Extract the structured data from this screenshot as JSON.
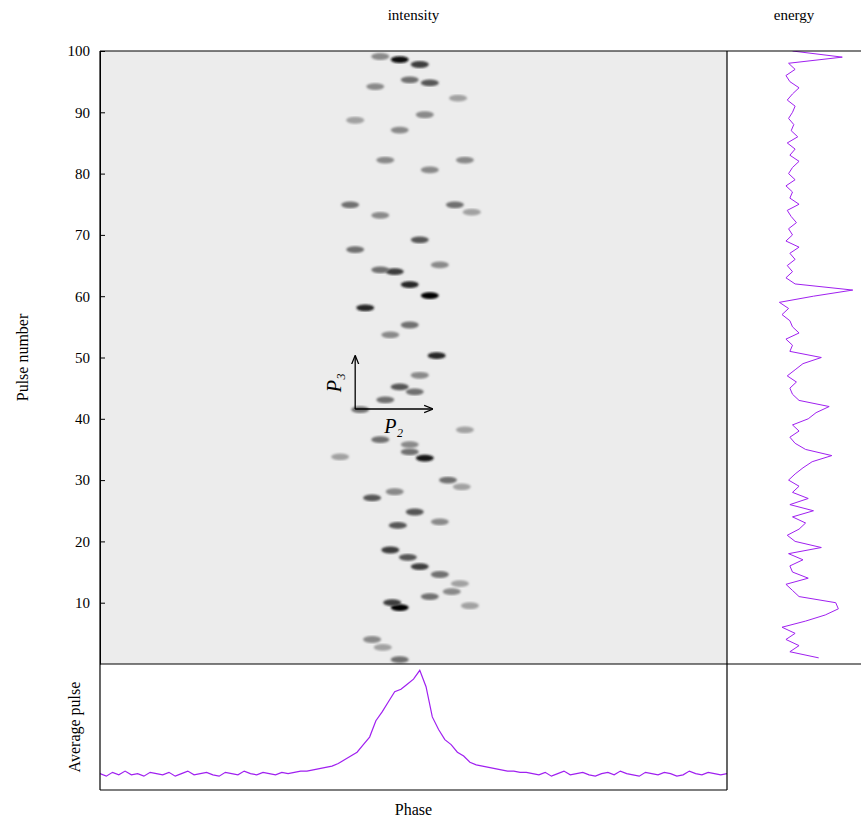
{
  "chart_data": [
    {
      "type": "scatter",
      "title": "intensity",
      "y_label": "Pulse number",
      "xlim": [
        0,
        1
      ],
      "ylim": [
        0,
        100
      ],
      "yticks": [
        10,
        20,
        30,
        40,
        50,
        60,
        70,
        80,
        90,
        100
      ],
      "tick_labels": "y",
      "marker": "ellipse",
      "color": "#000000",
      "x": [
        0.478,
        0.434,
        0.451,
        0.478,
        0.466,
        0.526,
        0.561,
        0.59,
        0.463,
        0.491,
        0.51,
        0.542,
        0.574,
        0.475,
        0.502,
        0.542,
        0.434,
        0.47,
        0.555,
        0.577,
        0.383,
        0.447,
        0.494,
        0.518,
        0.494,
        0.582,
        0.415,
        0.455,
        0.478,
        0.502,
        0.537,
        0.51,
        0.463,
        0.494,
        0.423,
        0.526,
        0.494,
        0.47,
        0.447,
        0.542,
        0.407,
        0.51,
        0.447,
        0.399,
        0.566,
        0.593,
        0.455,
        0.526,
        0.582,
        0.407,
        0.478,
        0.518,
        0.439,
        0.494,
        0.526,
        0.571,
        0.478,
        0.447,
        0.51
      ],
      "y": [
        0.7,
        4,
        2.7,
        9.2,
        10,
        11,
        11.8,
        9.5,
        18.6,
        17.4,
        15.9,
        14.6,
        13.1,
        22.6,
        24.8,
        23.2,
        27.1,
        28.1,
        30,
        28.9,
        33.8,
        36.6,
        35.8,
        33.6,
        34.6,
        38.2,
        41.5,
        43.1,
        45.2,
        44.4,
        50.3,
        47.1,
        53.7,
        55.3,
        58.1,
        60.1,
        61.9,
        64,
        64.3,
        65.1,
        67.6,
        69.2,
        73.2,
        74.9,
        74.9,
        73.7,
        82.2,
        80.6,
        82.2,
        88.7,
        87.1,
        89.6,
        94.2,
        95.3,
        94.8,
        92.3,
        98.6,
        99.1,
        97.8
      ],
      "intensity": [
        0.5,
        0.4,
        0.3,
        0.95,
        0.7,
        0.5,
        0.4,
        0.3,
        0.7,
        0.6,
        0.7,
        0.5,
        0.3,
        0.6,
        0.6,
        0.4,
        0.6,
        0.4,
        0.5,
        0.3,
        0.3,
        0.5,
        0.4,
        0.85,
        0.5,
        0.3,
        0.5,
        0.5,
        0.6,
        0.5,
        0.8,
        0.4,
        0.4,
        0.5,
        0.8,
        0.95,
        0.8,
        0.7,
        0.5,
        0.4,
        0.5,
        0.6,
        0.4,
        0.5,
        0.5,
        0.3,
        0.4,
        0.4,
        0.4,
        0.3,
        0.4,
        0.4,
        0.4,
        0.5,
        0.6,
        0.3,
        0.9,
        0.4,
        0.7
      ],
      "annotations": [
        {
          "text": "P₃",
          "x": [
            0.407,
            0.407
          ],
          "y": [
            41.6,
            50.2
          ]
        },
        {
          "text": "P₂",
          "x": [
            0.407,
            0.53
          ],
          "y": [
            41.6,
            41.6
          ]
        }
      ]
    },
    {
      "type": "line",
      "title": "energy",
      "orientation": "horizontal",
      "tick_labels": false,
      "xlim": [
        0,
        1
      ],
      "ylim": [
        0,
        100
      ],
      "color": "#a020f0",
      "y": [
        1,
        2,
        3,
        4,
        5,
        6,
        7,
        8,
        9,
        10,
        11,
        12,
        13,
        14,
        15,
        16,
        17,
        18,
        19,
        20,
        21,
        22,
        23,
        24,
        25,
        26,
        27,
        28,
        29,
        30,
        31,
        32,
        33,
        34,
        35,
        36,
        37,
        38,
        39,
        40,
        41,
        42,
        43,
        44,
        45,
        46,
        47,
        48,
        49,
        50,
        51,
        52,
        53,
        54,
        55,
        56,
        57,
        58,
        59,
        60,
        61,
        62,
        63,
        64,
        65,
        66,
        67,
        68,
        69,
        70,
        71,
        72,
        73,
        74,
        75,
        76,
        77,
        78,
        79,
        80,
        81,
        82,
        83,
        84,
        85,
        86,
        87,
        88,
        89,
        90,
        91,
        92,
        93,
        94,
        95,
        96,
        97,
        98,
        99,
        100
      ],
      "values": [
        0.7,
        0.48,
        0.55,
        0.45,
        0.52,
        0.42,
        0.6,
        0.75,
        0.85,
        0.83,
        0.55,
        0.5,
        0.45,
        0.62,
        0.5,
        0.48,
        0.58,
        0.47,
        0.72,
        0.52,
        0.46,
        0.55,
        0.6,
        0.5,
        0.66,
        0.48,
        0.62,
        0.5,
        0.55,
        0.47,
        0.52,
        0.58,
        0.65,
        0.8,
        0.6,
        0.52,
        0.48,
        0.55,
        0.5,
        0.62,
        0.68,
        0.78,
        0.55,
        0.5,
        0.48,
        0.53,
        0.46,
        0.52,
        0.58,
        0.72,
        0.48,
        0.5,
        0.45,
        0.55,
        0.5,
        0.48,
        0.42,
        0.47,
        0.4,
        0.66,
        0.96,
        0.52,
        0.45,
        0.5,
        0.46,
        0.52,
        0.48,
        0.55,
        0.45,
        0.5,
        0.47,
        0.53,
        0.49,
        0.46,
        0.55,
        0.48,
        0.5,
        0.45,
        0.52,
        0.47,
        0.5,
        0.55,
        0.48,
        0.52,
        0.46,
        0.54,
        0.49,
        0.51,
        0.47,
        0.5,
        0.52,
        0.46,
        0.5,
        0.55,
        0.48,
        0.45,
        0.52,
        0.47,
        0.88,
        0.5
      ]
    },
    {
      "type": "line",
      "y_label": "Average pulse",
      "x_label": "Phase",
      "tick_labels": false,
      "xlim": [
        0,
        1
      ],
      "ylim": [
        0,
        1
      ],
      "color": "#a020f0",
      "x": [
        0,
        0.01,
        0.02,
        0.03,
        0.04,
        0.05,
        0.06,
        0.07,
        0.08,
        0.09,
        0.1,
        0.11,
        0.12,
        0.13,
        0.14,
        0.15,
        0.16,
        0.17,
        0.18,
        0.19,
        0.2,
        0.21,
        0.22,
        0.23,
        0.24,
        0.25,
        0.26,
        0.27,
        0.28,
        0.29,
        0.3,
        0.31,
        0.32,
        0.33,
        0.34,
        0.35,
        0.36,
        0.37,
        0.38,
        0.39,
        0.4,
        0.41,
        0.42,
        0.43,
        0.44,
        0.45,
        0.46,
        0.47,
        0.48,
        0.49,
        0.5,
        0.51,
        0.52,
        0.53,
        0.54,
        0.55,
        0.56,
        0.57,
        0.58,
        0.59,
        0.6,
        0.61,
        0.62,
        0.63,
        0.64,
        0.65,
        0.66,
        0.67,
        0.68,
        0.69,
        0.7,
        0.71,
        0.72,
        0.73,
        0.74,
        0.75,
        0.76,
        0.77,
        0.78,
        0.79,
        0.8,
        0.81,
        0.82,
        0.83,
        0.84,
        0.85,
        0.86,
        0.87,
        0.88,
        0.89,
        0.9,
        0.91,
        0.92,
        0.93,
        0.94,
        0.95,
        0.96,
        0.97,
        0.98,
        0.99,
        1
      ],
      "values": [
        0.13,
        0.11,
        0.14,
        0.12,
        0.15,
        0.12,
        0.13,
        0.11,
        0.14,
        0.13,
        0.12,
        0.14,
        0.11,
        0.13,
        0.15,
        0.12,
        0.13,
        0.14,
        0.12,
        0.11,
        0.14,
        0.13,
        0.12,
        0.15,
        0.13,
        0.12,
        0.14,
        0.13,
        0.12,
        0.14,
        0.13,
        0.14,
        0.15,
        0.15,
        0.16,
        0.17,
        0.18,
        0.19,
        0.21,
        0.24,
        0.27,
        0.3,
        0.36,
        0.42,
        0.55,
        0.62,
        0.7,
        0.78,
        0.8,
        0.84,
        0.88,
        0.95,
        0.82,
        0.58,
        0.48,
        0.4,
        0.36,
        0.3,
        0.27,
        0.22,
        0.2,
        0.19,
        0.18,
        0.17,
        0.16,
        0.15,
        0.15,
        0.14,
        0.14,
        0.13,
        0.12,
        0.14,
        0.11,
        0.13,
        0.15,
        0.12,
        0.13,
        0.14,
        0.12,
        0.11,
        0.13,
        0.14,
        0.12,
        0.15,
        0.13,
        0.12,
        0.11,
        0.14,
        0.13,
        0.12,
        0.14,
        0.13,
        0.11,
        0.12,
        0.15,
        0.13,
        0.12,
        0.14,
        0.13,
        0.12,
        0.13
      ]
    }
  ]
}
